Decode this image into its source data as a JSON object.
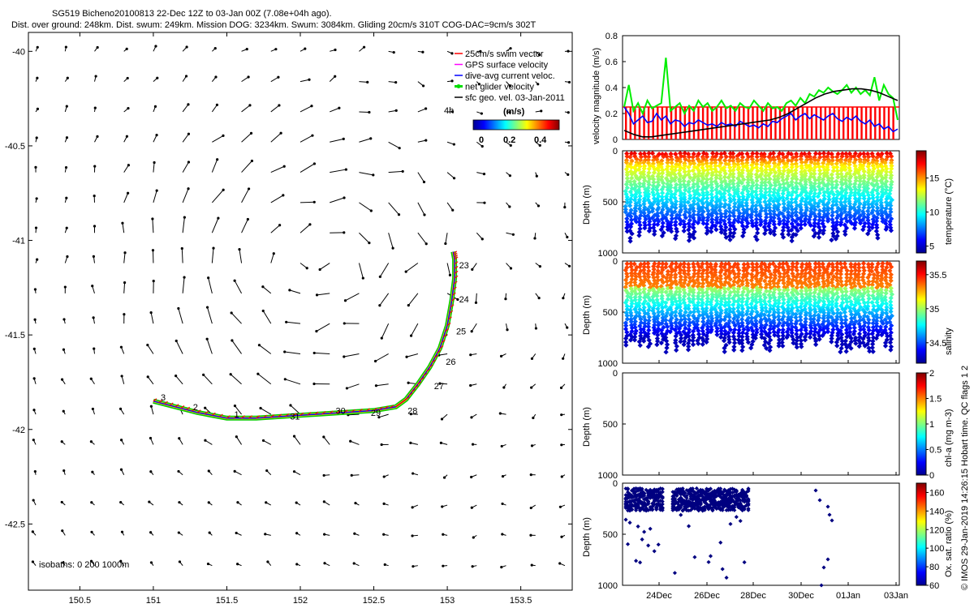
{
  "header": {
    "line1": "SG519 Bicheno20100813 22-Dec 12Z to 03-Jan 00Z (7.08e+04h ago).",
    "line2": "Dist. over ground: 248km. Dist. swum: 249km. Mission DOG: 3234km. Swum: 3084km. Gliding 20cm/s 310T COG-DAC=9cm/s 302T"
  },
  "footer_credit": "© IMOS 29-Jan-2019 14:26:15 Hobart time. QC flags 1  2",
  "chart_data": [
    {
      "type": "scatter",
      "title": "",
      "xlabel": "",
      "ylabel": "",
      "xlim": [
        150.15,
        153.85
      ],
      "ylim": [
        -42.85,
        -39.9
      ],
      "xticks": [
        150.5,
        151,
        151.5,
        152,
        152.5,
        153,
        153.5
      ],
      "yticks": [
        -40,
        -40.5,
        -41,
        -41.5,
        -42,
        -42.5
      ],
      "legend": {
        "placement": "top-right",
        "entries": [
          {
            "label": "25cm/s swim vector",
            "color": "#ff0000"
          },
          {
            "label": "GPS surface velocity",
            "color": "#ff00ff"
          },
          {
            "label": "dive-avg current veloc.",
            "color": "#0000ff"
          },
          {
            "label": "net glider velocity",
            "color": "#00dd00"
          },
          {
            "label": "sfc geo. vel. 03-Jan-2011",
            "color": "#000000"
          }
        ],
        "scale_label": "4h"
      },
      "colorbar": {
        "label": "(m/s)",
        "ticks": [
          "0",
          "0.2",
          "0.4"
        ],
        "range": [
          0,
          0.5
        ]
      },
      "isobaths_label": "isobaths: 0   200   1000m",
      "track": [
        [
          151.0,
          -41.85
        ],
        [
          151.15,
          -41.88
        ],
        [
          151.3,
          -41.91
        ],
        [
          151.5,
          -41.94
        ],
        [
          151.7,
          -41.94
        ],
        [
          151.9,
          -41.93
        ],
        [
          152.1,
          -41.92
        ],
        [
          152.3,
          -41.91
        ],
        [
          152.5,
          -41.9
        ],
        [
          152.65,
          -41.88
        ],
        [
          152.72,
          -41.84
        ],
        [
          152.8,
          -41.76
        ],
        [
          152.88,
          -41.67
        ],
        [
          152.95,
          -41.57
        ],
        [
          153.0,
          -41.45
        ],
        [
          153.03,
          -41.32
        ],
        [
          153.05,
          -41.2
        ],
        [
          153.05,
          -41.1
        ],
        [
          153.04,
          -41.06
        ]
      ],
      "day_labels": [
        {
          "text": "23",
          "lon": 153.08,
          "lat": -41.13
        },
        {
          "text": "24",
          "lon": 153.08,
          "lat": -41.31
        },
        {
          "text": "25",
          "lon": 153.06,
          "lat": -41.48
        },
        {
          "text": "26",
          "lon": 152.99,
          "lat": -41.64
        },
        {
          "text": "27",
          "lon": 152.91,
          "lat": -41.77
        },
        {
          "text": "28",
          "lon": 152.73,
          "lat": -41.9
        },
        {
          "text": "29",
          "lon": 152.48,
          "lat": -41.91
        },
        {
          "text": "30",
          "lon": 152.24,
          "lat": -41.9
        },
        {
          "text": "31",
          "lon": 151.93,
          "lat": -41.93
        },
        {
          "text": "1",
          "lon": 151.55,
          "lat": -41.92
        },
        {
          "text": "2",
          "lon": 151.27,
          "lat": -41.88
        },
        {
          "text": "3",
          "lon": 151.05,
          "lat": -41.83
        }
      ]
    },
    {
      "type": "line",
      "ylabel": "velocity magnitude (m/s)",
      "ylim": [
        0,
        0.8
      ],
      "yticks": [
        "0",
        "0.2",
        "0.4",
        "0.6",
        "0.8"
      ],
      "series": [
        {
          "color": "#00ee00",
          "values": [
            0.25,
            0.42,
            0.22,
            0.28,
            0.2,
            0.3,
            0.24,
            0.26,
            0.28,
            0.63,
            0.22,
            0.25,
            0.28,
            0.2,
            0.26,
            0.22,
            0.3,
            0.25,
            0.28,
            0.22,
            0.25,
            0.3,
            0.24,
            0.26,
            0.22,
            0.28,
            0.25,
            0.24,
            0.3,
            0.26,
            0.22,
            0.28,
            0.24,
            0.25,
            0.22,
            0.28,
            0.3,
            0.26,
            0.32,
            0.28,
            0.35,
            0.33,
            0.38,
            0.36,
            0.4,
            0.37,
            0.35,
            0.38,
            0.42,
            0.36,
            0.4,
            0.35,
            0.38,
            0.34,
            0.48,
            0.3,
            0.42,
            0.35,
            0.32,
            0.15
          ]
        },
        {
          "color": "#0000ff",
          "values": [
            0.25,
            0.2,
            0.12,
            0.15,
            0.18,
            0.13,
            0.14,
            0.2,
            0.15,
            0.18,
            0.12,
            0.15,
            0.14,
            0.1,
            0.13,
            0.12,
            0.15,
            0.13,
            0.11,
            0.12,
            0.1,
            0.13,
            0.11,
            0.12,
            0.1,
            0.14,
            0.12,
            0.1,
            0.11,
            0.09,
            0.12,
            0.1,
            0.14,
            0.13,
            0.16,
            0.18,
            0.2,
            0.15,
            0.18,
            0.2,
            0.16,
            0.19,
            0.17,
            0.15,
            0.18,
            0.2,
            0.16,
            0.14,
            0.17,
            0.15,
            0.18,
            0.14,
            0.12,
            0.15,
            0.1,
            0.12,
            0.08,
            0.1,
            0.06,
            0.08
          ]
        },
        {
          "color": "#000000",
          "values": [
            0.07,
            0.04,
            0.02,
            0.02,
            0.03,
            0.04,
            0.05,
            0.06,
            0.07,
            0.08,
            0.09,
            0.1,
            0.11,
            0.12,
            0.13,
            0.14,
            0.15,
            0.17,
            0.2,
            0.24,
            0.28,
            0.32,
            0.35,
            0.37,
            0.38,
            0.39,
            0.39,
            0.38,
            0.36,
            0.33,
            0.3
          ]
        }
      ],
      "bars": {
        "color": "#ff0000",
        "value": 0.25,
        "count": 60
      }
    },
    {
      "type": "heatmap",
      "ylabel": "Depth (m)",
      "clabel": "temperature (°C)",
      "clim": [
        4,
        19
      ],
      "cticks": [
        "5",
        "10",
        "15"
      ],
      "yticks": [
        "0",
        "500",
        "1000"
      ]
    },
    {
      "type": "heatmap",
      "ylabel": "Depth (m)",
      "clabel": "salinity",
      "clim": [
        34.2,
        35.7
      ],
      "cticks": [
        "34.5",
        "35",
        "35.5"
      ],
      "yticks": [
        "0",
        "500",
        "1000"
      ]
    },
    {
      "type": "heatmap",
      "ylabel": "Depth (m)",
      "clabel": "chl-a (mg m-3)",
      "clim": [
        0,
        2
      ],
      "cticks": [
        "0",
        "0.5",
        "1",
        "1.5",
        "2"
      ],
      "yticks": [
        "0",
        "500",
        "1000"
      ]
    },
    {
      "type": "heatmap",
      "ylabel": "Depth (m)",
      "clabel": "Ox. sat. ratio (%)",
      "clim": [
        60,
        170
      ],
      "cticks": [
        "60",
        "80",
        "100",
        "120",
        "140",
        "160"
      ],
      "yticks": [
        "0",
        "500",
        "1000"
      ],
      "xticks": [
        "24Dec",
        "26Dec",
        "28Dec",
        "30Dec",
        "01Jan",
        "03Jan"
      ]
    }
  ]
}
